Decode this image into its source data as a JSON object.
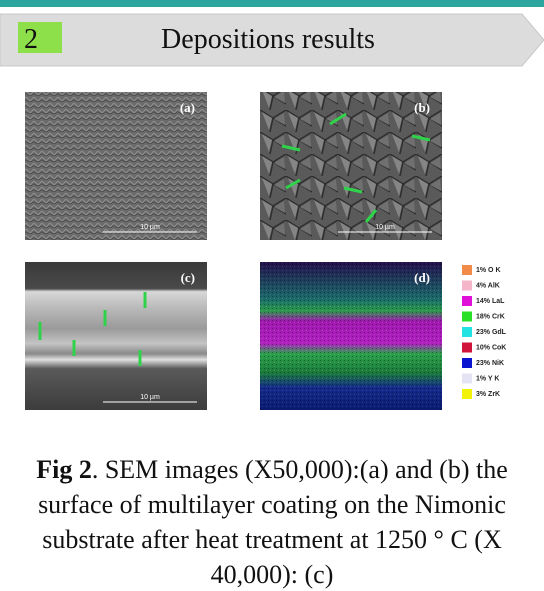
{
  "header": {
    "number": "2",
    "title": "Depositions results"
  },
  "figure": {
    "panels": [
      {
        "label": "(a)",
        "scale": "10 µm"
      },
      {
        "label": "(b)",
        "scale": "10 µm"
      },
      {
        "label": "(c)",
        "scale": "10 µm"
      },
      {
        "label": "(d)"
      }
    ],
    "legend": [
      {
        "label": "1% O K",
        "color": "#f28a4a"
      },
      {
        "label": "4% AlK",
        "color": "#f4b6c8"
      },
      {
        "label": "14% LaL",
        "color": "#e010d8"
      },
      {
        "label": "18% CrK",
        "color": "#28e028"
      },
      {
        "label": "23% GdL",
        "color": "#22e2e2"
      },
      {
        "label": "10% CoK",
        "color": "#d0143c"
      },
      {
        "label": "23% NiK",
        "color": "#0a14d0"
      },
      {
        "label": "1% Y K",
        "color": "#e4e4f4"
      },
      {
        "label": "3% ZrK",
        "color": "#f2f20a"
      }
    ]
  },
  "caption": {
    "lead": "Fig 2",
    "text": ". SEM images (X50,000):(a) and (b) the surface of multilayer coating on the Nimonic substrate after heat treatment at 1250 ° C (X 40,000): (c)"
  }
}
